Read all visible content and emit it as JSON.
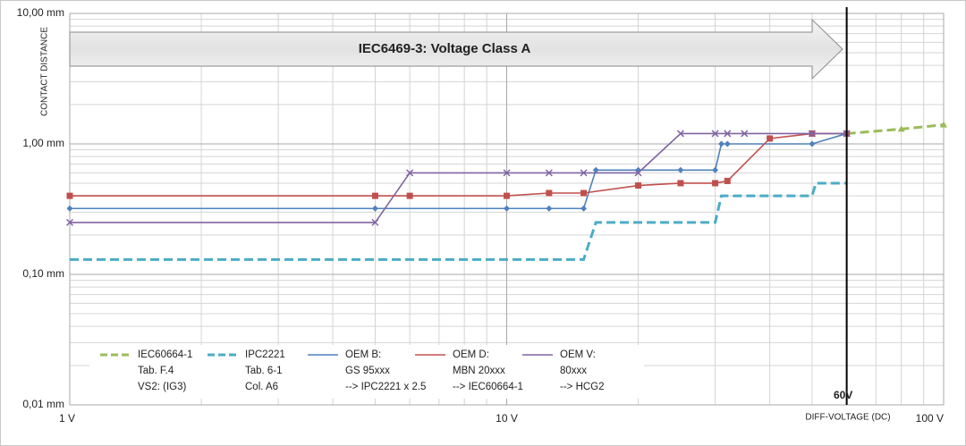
{
  "chart_data": {
    "type": "line",
    "y_label": "CONTACT DISTANCE",
    "x_label": "DIFF-VOLTAGE (DC)",
    "annotation": "IEC6469-3: Voltage Class A",
    "x_scale": "log",
    "y_scale": "log",
    "grid": true,
    "minor_grid": true,
    "xlim": [
      1,
      100
    ],
    "xticks": [
      {
        "value": 1,
        "label": "1 V"
      },
      {
        "value": 10,
        "label": "10 V"
      },
      {
        "value": 100,
        "label": "100 V"
      }
    ],
    "ylim": [
      0.01,
      10
    ],
    "yticks": [
      {
        "value": 0.01,
        "label": "0,01 mm"
      },
      {
        "value": 0.1,
        "label": "0,10 mm"
      },
      {
        "value": 1,
        "label": "1,00 mm"
      },
      {
        "value": 10,
        "label": "10,00 mm"
      }
    ],
    "marker_line": {
      "value": 60,
      "label": "60V"
    },
    "legend_position": "bottom-left",
    "series": [
      {
        "name": "IEC60664-1",
        "notes": [
          "Tab. F.4",
          "VS2: (IG3)"
        ],
        "color": "#9bbb59",
        "dash": true,
        "marker": "triangle",
        "x": [
          60,
          80,
          100
        ],
        "values": [
          1.2,
          1.3,
          1.4
        ]
      },
      {
        "name": "IPC2221",
        "notes": [
          "Tab. 6-1",
          "Col. A6"
        ],
        "color": "#4bacc6",
        "dash": true,
        "marker": "none",
        "x": [
          1,
          15,
          16,
          30,
          31,
          50,
          51,
          60
        ],
        "values": [
          0.13,
          0.13,
          0.25,
          0.25,
          0.4,
          0.4,
          0.5,
          0.5
        ]
      },
      {
        "name": "OEM B:",
        "notes": [
          "GS 95xxx",
          "--> IPC2221 x 2.5"
        ],
        "color": "#4f81bd",
        "dash": false,
        "marker": "diamond",
        "x": [
          1,
          5,
          10,
          12.5,
          15,
          16,
          20,
          25,
          30,
          31,
          32,
          50,
          60
        ],
        "values": [
          0.32,
          0.32,
          0.32,
          0.32,
          0.32,
          0.63,
          0.63,
          0.63,
          0.63,
          1.0,
          1.0,
          1.0,
          1.2
        ]
      },
      {
        "name": "OEM D:",
        "notes": [
          "MBN 20xxx",
          "--> IEC60664-1"
        ],
        "color": "#c0504d",
        "dash": false,
        "marker": "square",
        "x": [
          1,
          5,
          6,
          10,
          12.5,
          15,
          20,
          25,
          30,
          32,
          40,
          50,
          60
        ],
        "values": [
          0.4,
          0.4,
          0.4,
          0.4,
          0.42,
          0.42,
          0.48,
          0.5,
          0.5,
          0.52,
          1.1,
          1.2,
          1.2
        ]
      },
      {
        "name": "OEM V:",
        "notes": [
          "80xxx",
          "--> HCG2"
        ],
        "color": "#8064a2",
        "dash": false,
        "marker": "cross",
        "x": [
          1,
          5,
          6,
          10,
          12.5,
          15,
          20,
          25,
          30,
          32,
          35,
          50,
          60
        ],
        "values": [
          0.25,
          0.25,
          0.6,
          0.6,
          0.6,
          0.6,
          0.6,
          1.2,
          1.2,
          1.2,
          1.2,
          1.2,
          1.2
        ]
      }
    ]
  }
}
